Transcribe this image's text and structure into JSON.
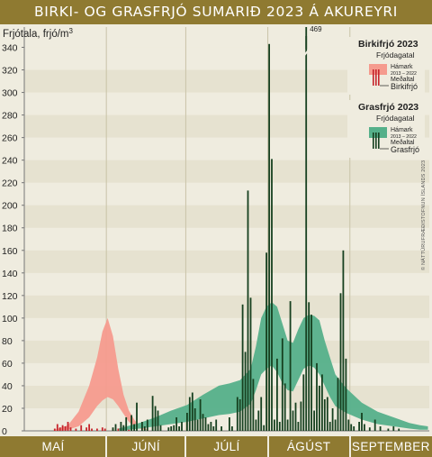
{
  "title": "BIRKI- OG GRASFRJÓ SUMARIÐ 2023 Á AKUREYRI",
  "credit": "© NÁTTÚRUFRÆÐISTOFNUN ÍSLANDS 2023",
  "colors": {
    "title_bar": "#8f7a31",
    "birch_band": "#f59b8e",
    "birch_bar": "#c5242c",
    "grass_band": "#55b08a",
    "grass_bar": "#16401f"
  },
  "legend": {
    "birch": {
      "title": "Birkifrjó 2023",
      "subtitle": "Frjódagatal",
      "max_label": "Hámark",
      "range_label": "2013 – 2022",
      "mean_label": "Meðaltal",
      "series_label": "Birkifrjó"
    },
    "grass": {
      "title": "Grasfrjó 2023",
      "subtitle": "Frjódagatal",
      "max_label": "Hámark",
      "range_label": "2013 – 2022",
      "mean_label": "Meðaltal",
      "series_label": "Grasfrjó"
    }
  },
  "chart_data": {
    "type": "bar",
    "ylabel": "Frjótala, frjó/m³",
    "ylim": [
      0,
      350
    ],
    "yticks": [
      0,
      20,
      40,
      60,
      80,
      100,
      120,
      140,
      160,
      180,
      200,
      220,
      240,
      260,
      280,
      300,
      320,
      340
    ],
    "x_unit": "day (1 = 1 May)",
    "xlim": [
      1,
      153
    ],
    "months": [
      {
        "label": "MAÍ",
        "start_day": 1
      },
      {
        "label": "JÚNÍ",
        "start_day": 32
      },
      {
        "label": "JÚLÍ",
        "start_day": 62
      },
      {
        "label": "ÁGÚST",
        "start_day": 93
      },
      {
        "label": "SEPTEMBER",
        "start_day": 124
      }
    ],
    "annotations": [
      {
        "text": "469",
        "day": 107
      }
    ],
    "birch_calendar": {
      "name": "Birkifrjó frjódagatal 2013–2022",
      "days": [
        12,
        17,
        21,
        25,
        28,
        30,
        32,
        34,
        36,
        38,
        40,
        42,
        44,
        46,
        48,
        50
      ],
      "max": [
        1,
        5,
        17,
        40,
        65,
        88,
        100,
        84,
        55,
        32,
        18,
        10,
        4,
        2,
        0,
        0
      ],
      "mean": [
        0,
        1,
        4,
        12,
        22,
        27,
        30,
        28,
        22,
        15,
        8,
        4,
        2,
        1,
        0,
        0
      ]
    },
    "grass_calendar": {
      "name": "Grasfrjó frjódagatal 2013–2022",
      "days": [
        36,
        44,
        50,
        56,
        62,
        68,
        74,
        78,
        82,
        86,
        88,
        90,
        92,
        94,
        96,
        98,
        100,
        102,
        104,
        106,
        108,
        110,
        112,
        114,
        116,
        118,
        122,
        128,
        134,
        140,
        146,
        150,
        153
      ],
      "max": [
        2,
        7,
        12,
        18,
        23,
        32,
        40,
        42,
        45,
        55,
        75,
        100,
        110,
        114,
        110,
        95,
        80,
        78,
        90,
        100,
        103,
        102,
        98,
        80,
        65,
        50,
        38,
        25,
        17,
        12,
        7,
        5,
        4
      ],
      "mean": [
        0,
        2,
        4,
        6,
        8,
        11,
        14,
        15,
        17,
        24,
        36,
        50,
        55,
        58,
        52,
        42,
        36,
        35,
        45,
        55,
        58,
        56,
        50,
        40,
        30,
        22,
        16,
        10,
        6,
        4,
        2,
        1,
        1
      ]
    },
    "birch_2023": {
      "name": "Birkifrjó",
      "days": [
        12,
        13,
        14,
        15,
        16,
        17,
        18,
        20,
        22,
        24,
        25,
        26,
        28,
        30,
        31,
        34,
        36,
        38,
        40
      ],
      "values": [
        2,
        6,
        3,
        5,
        4,
        8,
        3,
        2,
        5,
        3,
        6,
        2,
        2,
        3,
        2,
        2,
        2,
        1,
        1
      ]
    },
    "grass_2023": {
      "name": "Grasfrjó",
      "days": [
        34,
        35,
        37,
        38,
        39,
        41,
        42,
        43,
        45,
        46,
        47,
        49,
        50,
        51,
        52,
        55,
        56,
        57,
        58,
        59,
        60,
        62,
        63,
        64,
        65,
        66,
        67,
        68,
        69,
        70,
        71,
        72,
        73,
        75,
        78,
        79,
        81,
        82,
        83,
        84,
        85,
        86,
        87,
        88,
        89,
        90,
        91,
        92,
        93,
        94,
        95,
        96,
        97,
        98,
        99,
        100,
        101,
        102,
        103,
        104,
        105,
        106,
        107,
        108,
        109,
        110,
        111,
        112,
        113,
        114,
        115,
        116,
        117,
        118,
        119,
        120,
        121,
        122,
        123,
        124,
        125,
        127,
        128,
        129,
        131,
        133,
        135,
        138,
        140,
        142
      ],
      "values": [
        3,
        6,
        8,
        5,
        12,
        14,
        6,
        25,
        8,
        4,
        10,
        31,
        22,
        18,
        5,
        3,
        4,
        5,
        12,
        4,
        8,
        16,
        30,
        34,
        20,
        10,
        28,
        15,
        12,
        6,
        8,
        4,
        10,
        4,
        12,
        4,
        30,
        28,
        112,
        70,
        213,
        118,
        46,
        10,
        18,
        30,
        5,
        158,
        343,
        241,
        10,
        64,
        8,
        82,
        42,
        10,
        115,
        18,
        25,
        8,
        26,
        50,
        469,
        114,
        103,
        18,
        60,
        40,
        50,
        28,
        30,
        8,
        20,
        10,
        47,
        122,
        160,
        64,
        10,
        6,
        4,
        8,
        16,
        6,
        3,
        10,
        4,
        2,
        4,
        2
      ]
    }
  }
}
